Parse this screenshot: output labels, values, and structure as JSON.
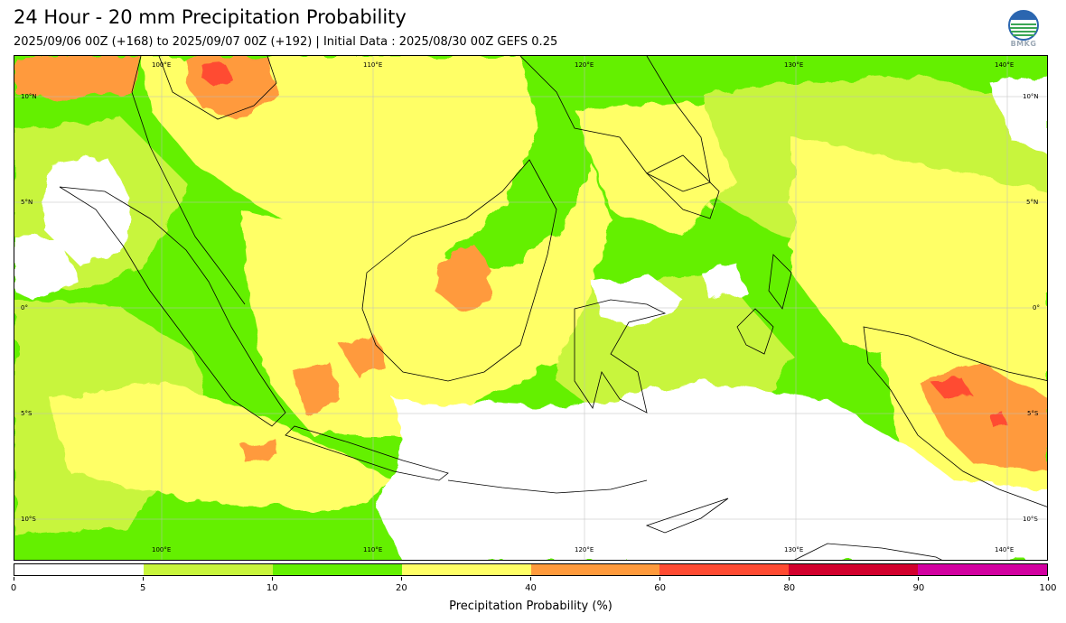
{
  "header": {
    "title": "24 Hour - 20 mm Precipitation Probability",
    "subtitle": "2025/09/06 00Z (+168) to 2025/09/07 00Z (+192) | Initial Data : 2025/08/30 00Z GEFS 0.25"
  },
  "logo": {
    "text": "BMKG"
  },
  "map": {
    "lon_labels_top": [
      "100°E",
      "110°E",
      "120°E",
      "130°E",
      "140°E"
    ],
    "lon_labels_bottom": [
      "100°E",
      "110°E",
      "120°E",
      "130°E",
      "140°E"
    ],
    "lat_labels_left": [
      "10°N",
      "5°N",
      "0°",
      "5°S",
      "10°S"
    ],
    "lat_labels_right": [
      "10°N",
      "5°N",
      "0°",
      "5°S",
      "10°S"
    ],
    "colors": {
      "class_0": "#ffffff",
      "class_5": "#c8f53c",
      "class_10": "#64f000",
      "class_20": "#ffff66",
      "class_40": "#ff9a3c",
      "class_60": "#ff4b32",
      "class_80": "#d2002d",
      "class_90": "#d200a0"
    }
  },
  "colorbar": {
    "ticks": [
      "0",
      "5",
      "10",
      "20",
      "40",
      "60",
      "80",
      "90",
      "100"
    ],
    "colors": [
      "#ffffff",
      "#c8f53c",
      "#64f000",
      "#ffff66",
      "#ff9a3c",
      "#ff4b32",
      "#d2002d",
      "#d200a0"
    ],
    "label": "Precipitation Probability (%)"
  }
}
